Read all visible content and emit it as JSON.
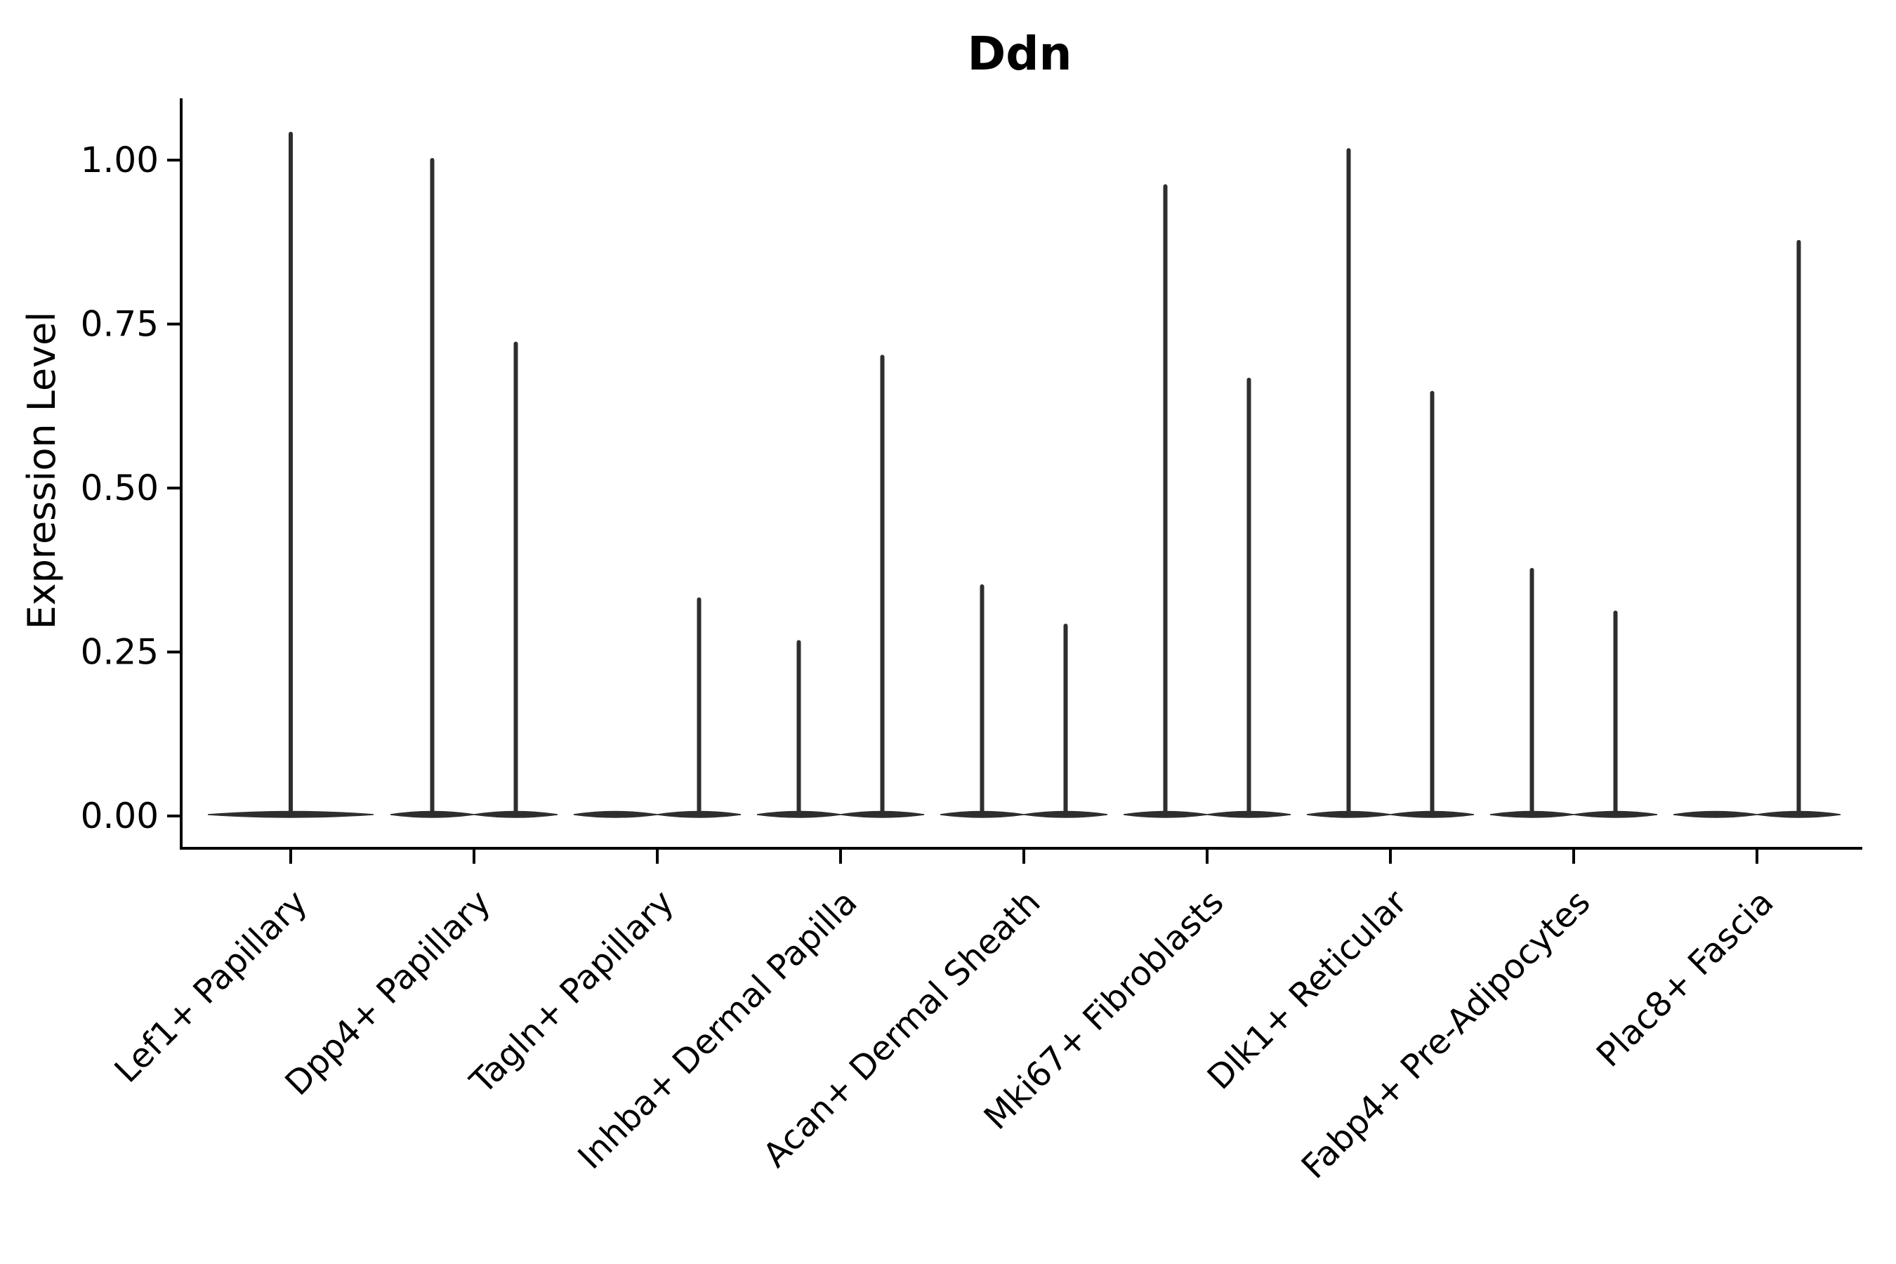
{
  "figure": {
    "title": "Ddn"
  },
  "colors": {
    "violin": "#2e2e2e",
    "axis": "#000000",
    "text": "#000000",
    "background": "#ffffff"
  },
  "chart_data": {
    "type": "violin",
    "title": "Ddn",
    "xlabel": "",
    "ylabel": "Expression Level",
    "ylim": [
      0,
      1.09
    ],
    "grid": false,
    "legend_position": "none",
    "yticks": [
      {
        "label": "0.00",
        "value": 0.0
      },
      {
        "label": "0.25",
        "value": 0.25
      },
      {
        "label": "0.50",
        "value": 0.5
      },
      {
        "label": "0.75",
        "value": 0.75
      },
      {
        "label": "1.00",
        "value": 1.0
      }
    ],
    "categories": [
      "Lef1+ Papillary",
      "Dpp4+ Papillary",
      "Tagln+ Papillary",
      "Inhba+ Dermal Papilla",
      "Acan+ Dermal Sheath",
      "Mki67+ Fibroblasts",
      "Dlk1+ Reticular",
      "Fabp4+ Pre-Adipocytes",
      "Plac8+ Fascia"
    ],
    "violin_description": "Near-all-zero expression: each violin is a flat lens at 0 with a thin density spike up to its max expression value; max=0 means flat violin with no spike",
    "violins": [
      {
        "category": "Lef1+ Papillary",
        "group": "single",
        "max": 1.04
      },
      {
        "category": "Dpp4+ Papillary",
        "group": "left",
        "max": 1.0
      },
      {
        "category": "Dpp4+ Papillary",
        "group": "right",
        "max": 0.72
      },
      {
        "category": "Tagln+ Papillary",
        "group": "left",
        "max": 0
      },
      {
        "category": "Tagln+ Papillary",
        "group": "right",
        "max": 0.33
      },
      {
        "category": "Inhba+ Dermal Papilla",
        "group": "left",
        "max": 0.265
      },
      {
        "category": "Inhba+ Dermal Papilla",
        "group": "right",
        "max": 0.7
      },
      {
        "category": "Acan+ Dermal Sheath",
        "group": "left",
        "max": 0.35
      },
      {
        "category": "Acan+ Dermal Sheath",
        "group": "right",
        "max": 0.29
      },
      {
        "category": "Mki67+ Fibroblasts",
        "group": "left",
        "max": 0.96
      },
      {
        "category": "Mki67+ Fibroblasts",
        "group": "right",
        "max": 0.665
      },
      {
        "category": "Dlk1+ Reticular",
        "group": "left",
        "max": 1.015
      },
      {
        "category": "Dlk1+ Reticular",
        "group": "right",
        "max": 0.645
      },
      {
        "category": "Fabp4+ Pre-Adipocytes",
        "group": "left",
        "max": 0.375
      },
      {
        "category": "Fabp4+ Pre-Adipocytes",
        "group": "right",
        "max": 0.31
      },
      {
        "category": "Plac8+ Fascia",
        "group": "left",
        "max": 0
      },
      {
        "category": "Plac8+ Fascia",
        "group": "right",
        "max": 0.875
      }
    ]
  }
}
